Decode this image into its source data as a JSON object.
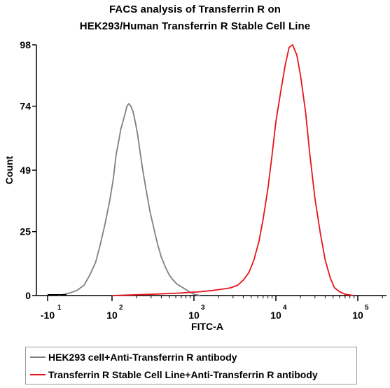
{
  "chart_data": {
    "type": "line",
    "title_line1": "FACS analysis of Transferrin R on",
    "title_line2": "HEK293/Human Transferrin R Stable Cell Line",
    "xlabel": "FITC-A",
    "ylabel": "Count",
    "x_scale": "biexponential",
    "xlim": [
      -30,
      300000
    ],
    "ylim": [
      0,
      98
    ],
    "x_ticks": [
      {
        "value": -10,
        "base": "-10",
        "exp": "1"
      },
      {
        "value": 100,
        "base": "10",
        "exp": "2"
      },
      {
        "value": 1000,
        "base": "10",
        "exp": "3"
      },
      {
        "value": 10000,
        "base": "10",
        "exp": "4"
      },
      {
        "value": 100000,
        "base": "10",
        "exp": "5"
      }
    ],
    "y_ticks": [
      0,
      25,
      49,
      74,
      98
    ],
    "series": [
      {
        "name": "HEK293 cell+Anti-Transferrin R antibody",
        "color": "#808080",
        "x": [
          8,
          18,
          28,
          40,
          52,
          62,
          72,
          80,
          88,
          96,
          104,
          112,
          120,
          128,
          136,
          144,
          152,
          160,
          170,
          180,
          192,
          205,
          220,
          240,
          265,
          290,
          320,
          360,
          400,
          450,
          500,
          560,
          620,
          700,
          780,
          880,
          1000,
          1200
        ],
        "y": [
          0,
          0.5,
          1,
          2,
          4,
          8,
          13,
          20,
          28,
          37,
          46,
          55,
          60,
          65,
          68,
          71,
          74,
          75,
          74,
          72,
          68,
          63,
          56,
          48,
          40,
          33,
          27,
          20,
          15,
          11,
          8,
          6,
          4.5,
          3.5,
          2.5,
          1.5,
          0.5,
          0
        ]
      },
      {
        "name": "Transferrin R Stable Cell Line+Anti-Transferrin R antibody",
        "color": "#e8141c",
        "x": [
          100,
          300,
          700,
          1200,
          1700,
          2200,
          2800,
          3400,
          4000,
          4700,
          5400,
          6200,
          7000,
          8000,
          9000,
          10000,
          11500,
          13000,
          14500,
          16000,
          18000,
          20000,
          23000,
          26000,
          30000,
          35000,
          40000,
          46000,
          52000,
          60000,
          70000,
          90000
        ],
        "y": [
          0,
          0.5,
          1,
          1.5,
          2,
          2.5,
          3,
          4,
          6,
          9,
          14,
          21,
          30,
          42,
          55,
          68,
          80,
          90,
          97,
          98,
          94,
          86,
          72,
          55,
          38,
          24,
          14,
          7,
          3,
          1.5,
          0.5,
          0
        ]
      }
    ],
    "legend": {
      "position": "bottom",
      "entries": [
        "HEK293 cell+Anti-Transferrin R antibody",
        "Transferrin R Stable Cell Line+Anti-Transferrin R antibody"
      ]
    },
    "grid": false
  }
}
